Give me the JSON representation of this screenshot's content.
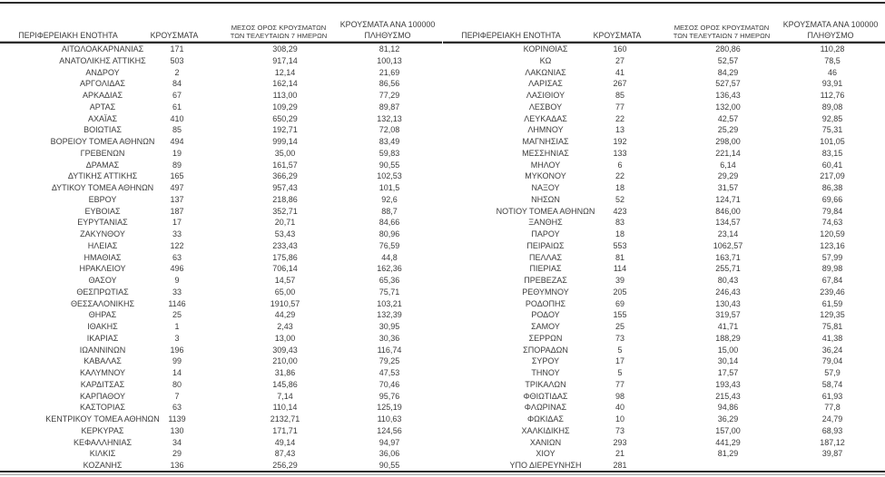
{
  "report": {
    "colors": {
      "text": "#3c3c3c",
      "rule_dark": "#2b2b2b",
      "rule_gray": "#a2a2a2",
      "background": "#ffffff"
    },
    "columns": {
      "region": "ΠΕΡΙΦΕΡΕΙΑΚΗ ΕΝΟΤΗΤΑ",
      "cases": "ΚΡΟΥΣΜΑΤΑ",
      "avg7_line1": "ΜΕΣΟΣ ΟΡΟΣ ΚΡΟΥΣΜΑΤΩΝ",
      "avg7_line2": "ΤΩΝ ΤΕΛΕΥΤΑΙΩΝ 7 ΗΜΕΡΩΝ",
      "per100k_line1": "ΚΡΟΥΣΜΑΤΑ ΑΝΑ 100000",
      "per100k_line2": "ΠΛΗΘΥΣΜΟ"
    },
    "left_rows": [
      [
        "ΑΙΤΩΛΟΑΚΑΡΝΑΝΙΑΣ",
        "171",
        "308,29",
        "81,12"
      ],
      [
        "ΑΝΑΤΟΛΙΚΗΣ ΑΤΤΙΚΗΣ",
        "503",
        "917,14",
        "100,13"
      ],
      [
        "ΑΝΔΡΟΥ",
        "2",
        "12,14",
        "21,69"
      ],
      [
        "ΑΡΓΟΛΙΔΑΣ",
        "84",
        "162,14",
        "86,56"
      ],
      [
        "ΑΡΚΑΔΙΑΣ",
        "67",
        "113,00",
        "77,29"
      ],
      [
        "ΑΡΤΑΣ",
        "61",
        "109,29",
        "89,87"
      ],
      [
        "ΑΧΑΪΑΣ",
        "410",
        "650,29",
        "132,13"
      ],
      [
        "ΒΟΙΩΤΙΑΣ",
        "85",
        "192,71",
        "72,08"
      ],
      [
        "ΒΟΡΕΙΟΥ ΤΟΜΕΑ ΑΘΗΝΩΝ",
        "494",
        "999,14",
        "83,49"
      ],
      [
        "ΓΡΕΒΕΝΩΝ",
        "19",
        "35,00",
        "59,83"
      ],
      [
        "ΔΡΑΜΑΣ",
        "89",
        "161,57",
        "90,55"
      ],
      [
        "ΔΥΤΙΚΗΣ ΑΤΤΙΚΗΣ",
        "165",
        "366,29",
        "102,53"
      ],
      [
        "ΔΥΤΙΚΟΥ ΤΟΜΕΑ ΑΘΗΝΩΝ",
        "497",
        "957,43",
        "101,5"
      ],
      [
        "ΕΒΡΟΥ",
        "137",
        "218,86",
        "92,6"
      ],
      [
        "ΕΥΒΟΙΑΣ",
        "187",
        "352,71",
        "88,7"
      ],
      [
        "ΕΥΡΥΤΑΝΙΑΣ",
        "17",
        "20,71",
        "84,66"
      ],
      [
        "ΖΑΚΥΝΘΟΥ",
        "33",
        "53,43",
        "80,96"
      ],
      [
        "ΗΛΕΙΑΣ",
        "122",
        "233,43",
        "76,59"
      ],
      [
        "ΗΜΑΘΙΑΣ",
        "63",
        "175,86",
        "44,8"
      ],
      [
        "ΗΡΑΚΛΕΙΟΥ",
        "496",
        "706,14",
        "162,36"
      ],
      [
        "ΘΑΣΟΥ",
        "9",
        "14,57",
        "65,36"
      ],
      [
        "ΘΕΣΠΡΩΤΙΑΣ",
        "33",
        "65,00",
        "75,71"
      ],
      [
        "ΘΕΣΣΑΛΟΝΙΚΗΣ",
        "1146",
        "1910,57",
        "103,21"
      ],
      [
        "ΘΗΡΑΣ",
        "25",
        "44,29",
        "132,39"
      ],
      [
        "ΙΘΑΚΗΣ",
        "1",
        "2,43",
        "30,95"
      ],
      [
        "ΙΚΑΡΙΑΣ",
        "3",
        "13,00",
        "30,36"
      ],
      [
        "ΙΩΑΝΝΙΝΩΝ",
        "196",
        "309,43",
        "116,74"
      ],
      [
        "ΚΑΒΑΛΑΣ",
        "99",
        "210,00",
        "79,25"
      ],
      [
        "ΚΑΛΥΜΝΟΥ",
        "14",
        "31,86",
        "47,53"
      ],
      [
        "ΚΑΡΔΙΤΣΑΣ",
        "80",
        "145,86",
        "70,46"
      ],
      [
        "ΚΑΡΠΑΘΟΥ",
        "7",
        "7,14",
        "95,76"
      ],
      [
        "ΚΑΣΤΟΡΙΑΣ",
        "63",
        "110,14",
        "125,19"
      ],
      [
        "ΚΕΝΤΡΙΚΟΥ ΤΟΜΕΑ ΑΘΗΝΩΝ",
        "1139",
        "2132,71",
        "110,63"
      ],
      [
        "ΚΕΡΚΥΡΑΣ",
        "130",
        "171,71",
        "124,56"
      ],
      [
        "ΚΕΦΑΛΛΗΝΙΑΣ",
        "34",
        "49,14",
        "94,97"
      ],
      [
        "ΚΙΛΚΙΣ",
        "29",
        "87,43",
        "36,06"
      ],
      [
        "ΚΟΖΑΝΗΣ",
        "136",
        "256,29",
        "90,55"
      ]
    ],
    "right_rows": [
      [
        "ΚΟΡΙΝΘΙΑΣ",
        "160",
        "280,86",
        "110,28"
      ],
      [
        "ΚΩ",
        "27",
        "52,57",
        "78,5"
      ],
      [
        "ΛΑΚΩΝΙΑΣ",
        "41",
        "84,29",
        "46"
      ],
      [
        "ΛΑΡΙΣΑΣ",
        "267",
        "527,57",
        "93,91"
      ],
      [
        "ΛΑΣΙΘΙΟΥ",
        "85",
        "136,43",
        "112,76"
      ],
      [
        "ΛΕΣΒΟΥ",
        "77",
        "132,00",
        "89,08"
      ],
      [
        "ΛΕΥΚΑΔΑΣ",
        "22",
        "42,57",
        "92,85"
      ],
      [
        "ΛΗΜΝΟΥ",
        "13",
        "25,29",
        "75,31"
      ],
      [
        "ΜΑΓΝΗΣΙΑΣ",
        "192",
        "298,00",
        "101,05"
      ],
      [
        "ΜΕΣΣΗΝΙΑΣ",
        "133",
        "221,14",
        "83,15"
      ],
      [
        "ΜΗΛΟΥ",
        "6",
        "6,14",
        "60,41"
      ],
      [
        "ΜΥΚΟΝΟΥ",
        "22",
        "29,29",
        "217,09"
      ],
      [
        "ΝΑΞΟΥ",
        "18",
        "31,57",
        "86,38"
      ],
      [
        "ΝΗΣΩΝ",
        "52",
        "124,71",
        "69,66"
      ],
      [
        "ΝΟΤΙΟΥ ΤΟΜΕΑ ΑΘΗΝΩΝ",
        "423",
        "846,00",
        "79,84"
      ],
      [
        "ΞΑΝΘΗΣ",
        "83",
        "134,57",
        "74,63"
      ],
      [
        "ΠΑΡΟΥ",
        "18",
        "23,14",
        "120,59"
      ],
      [
        "ΠΕΙΡΑΙΩΣ",
        "553",
        "1062,57",
        "123,16"
      ],
      [
        "ΠΕΛΛΑΣ",
        "81",
        "163,71",
        "57,99"
      ],
      [
        "ΠΙΕΡΙΑΣ",
        "114",
        "255,71",
        "89,98"
      ],
      [
        "ΠΡΕΒΕΖΑΣ",
        "39",
        "80,43",
        "67,84"
      ],
      [
        "ΡΕΘΥΜΝΟΥ",
        "205",
        "246,43",
        "239,46"
      ],
      [
        "ΡΟΔΟΠΗΣ",
        "69",
        "130,43",
        "61,59"
      ],
      [
        "ΡΟΔΟΥ",
        "155",
        "319,57",
        "129,35"
      ],
      [
        "ΣΑΜΟΥ",
        "25",
        "41,71",
        "75,81"
      ],
      [
        "ΣΕΡΡΩΝ",
        "73",
        "188,29",
        "41,38"
      ],
      [
        "ΣΠΟΡΑΔΩΝ",
        "5",
        "15,00",
        "36,24"
      ],
      [
        "ΣΥΡΟΥ",
        "17",
        "30,14",
        "79,04"
      ],
      [
        "ΤΗΝΟΥ",
        "5",
        "17,57",
        "57,9"
      ],
      [
        "ΤΡΙΚΑΛΩΝ",
        "77",
        "193,43",
        "58,74"
      ],
      [
        "ΦΘΙΩΤΙΔΑΣ",
        "98",
        "215,43",
        "61,93"
      ],
      [
        "ΦΛΩΡΙΝΑΣ",
        "40",
        "94,86",
        "77,8"
      ],
      [
        "ΦΩΚΙΔΑΣ",
        "10",
        "36,29",
        "24,79"
      ],
      [
        "ΧΑΛΚΙΔΙΚΗΣ",
        "73",
        "157,00",
        "68,93"
      ],
      [
        "ΧΑΝΙΩΝ",
        "293",
        "441,29",
        "187,12"
      ],
      [
        "ΧΙΟΥ",
        "21",
        "81,29",
        "39,87"
      ],
      [
        "ΥΠΟ ΔΙΕΡΕΥΝΗΣΗ",
        "281",
        "",
        ""
      ]
    ]
  }
}
